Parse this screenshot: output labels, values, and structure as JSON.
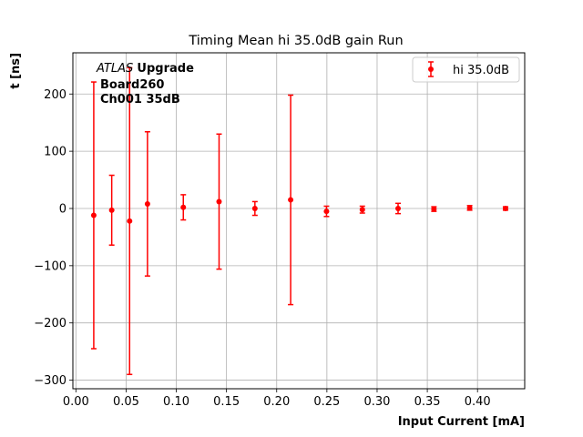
{
  "chart_data": {
    "type": "scatter",
    "title": "Timing Mean hi 35.0dB gain Run",
    "xlabel": "Input Current [mA]",
    "ylabel": "t [ns]",
    "xlim": [
      -0.003,
      0.447
    ],
    "ylim": [
      -315,
      272
    ],
    "xticks": [
      0.0,
      0.05,
      0.1,
      0.15,
      0.2,
      0.25,
      0.3,
      0.35,
      0.4
    ],
    "xtick_labels": [
      "0.00",
      "0.05",
      "0.10",
      "0.15",
      "0.20",
      "0.25",
      "0.30",
      "0.35",
      "0.40"
    ],
    "yticks": [
      -300,
      -200,
      -100,
      0,
      100,
      200
    ],
    "ytick_labels": [
      "−300",
      "−200",
      "−100",
      "0",
      "100",
      "200"
    ],
    "grid": true,
    "legend_position": "top-right",
    "annotation": {
      "line1_italic": "ATLAS",
      "line1_bold": "Upgrade",
      "line2": "Board260",
      "line3": "Ch001 35dB"
    },
    "series": [
      {
        "name": "hi 35.0dB",
        "color": "#ff0000",
        "x": [
          0.0178,
          0.0357,
          0.0535,
          0.0713,
          0.107,
          0.1426,
          0.1783,
          0.2139,
          0.2496,
          0.2853,
          0.3209,
          0.3566,
          0.3922,
          0.4279
        ],
        "y": [
          -12,
          -3,
          -22,
          8,
          2,
          12,
          0,
          15,
          -5,
          -2,
          0,
          -1,
          1,
          0
        ],
        "yerr": [
          233,
          61,
          268,
          126,
          22,
          118,
          12,
          183,
          9,
          6,
          9,
          4,
          4,
          3
        ]
      }
    ]
  }
}
